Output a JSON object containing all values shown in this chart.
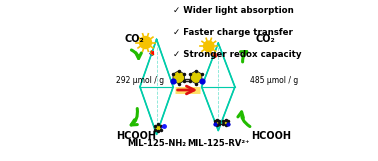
{
  "title_lines": [
    "✓ Wider light absorption",
    "✓ Faster charge transfer",
    "✓ Stronger redox capacity"
  ],
  "left_label": "MIL-125-NH₂",
  "right_label": "MIL-125-RV²⁺",
  "left_co2": "CO₂",
  "left_hcooh": "HCOOH",
  "right_co2": "CO₂",
  "right_hcooh": "HCOOH",
  "left_value": "292 μmol / g",
  "right_value": "485 μmol / g",
  "arrow_color": "#dd1111",
  "mof_color": "#00ccaa",
  "sun_color": "#f5c200",
  "green_arrow": "#22bb00",
  "bg_color": "#ffffff"
}
